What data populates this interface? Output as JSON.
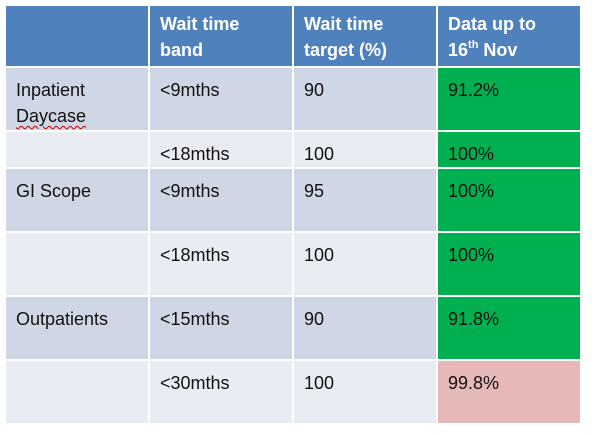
{
  "header": {
    "col1": "",
    "col2": "Wait time band",
    "col3": "Wait time target (%)",
    "col4_prefix": "Data up to 16",
    "col4_sup": "th",
    "col4_suffix": " Nov"
  },
  "rows": [
    {
      "category_line1": "Inpatient",
      "category_line2": "Daycase",
      "band": "<9mths",
      "target": "90",
      "data": "91.2%",
      "status_color": "#00b050"
    },
    {
      "category": "",
      "band": "<18mths",
      "target": "100",
      "data": "100%",
      "status_color": "#00b050"
    },
    {
      "category": "GI Scope",
      "band": "<9mths",
      "target": "95",
      "data": "100%",
      "status_color": "#00b050"
    },
    {
      "category": "",
      "band": "<18mths",
      "target": "100",
      "data": "100%",
      "status_color": "#00b050"
    },
    {
      "category": "Outpatients",
      "band": "<15mths",
      "target": "90",
      "data": "91.8%",
      "status_color": "#00b050"
    },
    {
      "category": "",
      "band": "<30mths",
      "target": "100",
      "data": "99.8%",
      "status_color": "#e6b8b7"
    }
  ],
  "colors": {
    "header_bg": "#4f81bd",
    "row_shade": "#cfd7e6",
    "row_light": "#e9ecf3",
    "green": "#00b050",
    "red": "#e6b8b7"
  }
}
